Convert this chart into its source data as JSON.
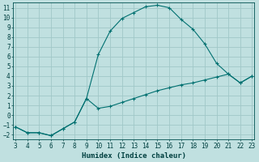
{
  "title": "",
  "xlabel": "Humidex (Indice chaleur)",
  "background_color": "#c0e0e0",
  "grid_color": "#a0c8c8",
  "line_color": "#007070",
  "xlim": [
    3,
    23
  ],
  "ylim": [
    -2.5,
    11.5
  ],
  "xticks": [
    3,
    4,
    5,
    6,
    7,
    8,
    9,
    10,
    11,
    12,
    13,
    14,
    15,
    16,
    17,
    18,
    19,
    20,
    21,
    22,
    23
  ],
  "yticks": [
    -2,
    -1,
    0,
    1,
    2,
    3,
    4,
    5,
    6,
    7,
    8,
    9,
    10,
    11
  ],
  "line1_x": [
    3,
    4,
    5,
    6,
    7,
    8,
    9,
    10,
    11,
    12,
    13,
    14,
    15,
    16,
    17,
    18,
    19,
    20,
    21,
    22,
    23
  ],
  "line1_y": [
    -1.2,
    -1.8,
    -1.8,
    -2.1,
    -1.4,
    -0.7,
    1.7,
    0.7,
    0.9,
    1.3,
    1.7,
    2.1,
    2.5,
    2.8,
    3.1,
    3.3,
    3.6,
    3.9,
    4.2,
    3.3,
    4.0
  ],
  "line2_x": [
    3,
    4,
    5,
    6,
    7,
    8,
    9,
    10,
    11,
    12,
    13,
    14,
    15,
    16,
    17,
    18,
    19,
    20,
    21,
    22,
    23
  ],
  "line2_y": [
    -1.2,
    -1.8,
    -1.8,
    -2.1,
    -1.4,
    -0.7,
    1.7,
    6.2,
    8.6,
    9.9,
    10.5,
    11.1,
    11.25,
    11.0,
    9.8,
    8.8,
    7.3,
    5.3,
    4.2,
    3.3,
    4.0
  ],
  "tick_fontsize": 5.5,
  "label_fontsize": 6.5,
  "font_family": "monospace"
}
